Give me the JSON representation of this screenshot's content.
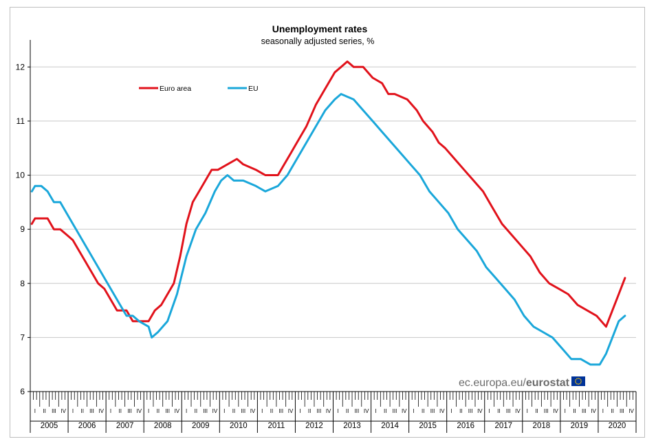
{
  "chart_data": {
    "type": "line",
    "title": "Unemployment rates",
    "subtitle": "seasonally adjusted series, %",
    "ylim": [
      6,
      12.5
    ],
    "yticks": [
      "6",
      "7",
      "8",
      "9",
      "10",
      "11",
      "12"
    ],
    "grid": true,
    "legend_position": "top-left",
    "x_years": [
      "2005",
      "2006",
      "2007",
      "2008",
      "2009",
      "2010",
      "2011",
      "2012",
      "2013",
      "2014",
      "2015",
      "2016",
      "2017",
      "2018",
      "2019",
      "2020"
    ],
    "quarter_labels": [
      "I",
      "II",
      "III",
      "IV"
    ],
    "series": [
      {
        "name": "Euro area",
        "color": "#e1121b",
        "points": [
          [
            "2005-01",
            9.1
          ],
          [
            "2005-02",
            9.2
          ],
          [
            "2005-06",
            9.2
          ],
          [
            "2005-08",
            9.0
          ],
          [
            "2005-10",
            9.0
          ],
          [
            "2005-12",
            8.9
          ],
          [
            "2006-02",
            8.8
          ],
          [
            "2006-04",
            8.6
          ],
          [
            "2006-06",
            8.4
          ],
          [
            "2006-08",
            8.2
          ],
          [
            "2006-10",
            8.0
          ],
          [
            "2006-12",
            7.9
          ],
          [
            "2007-02",
            7.7
          ],
          [
            "2007-04",
            7.5
          ],
          [
            "2007-07",
            7.5
          ],
          [
            "2007-09",
            7.3
          ],
          [
            "2007-12",
            7.3
          ],
          [
            "2008-02",
            7.3
          ],
          [
            "2008-04",
            7.5
          ],
          [
            "2008-06",
            7.6
          ],
          [
            "2008-08",
            7.8
          ],
          [
            "2008-10",
            8.0
          ],
          [
            "2008-12",
            8.5
          ],
          [
            "2009-02",
            9.1
          ],
          [
            "2009-04",
            9.5
          ],
          [
            "2009-06",
            9.7
          ],
          [
            "2009-08",
            9.9
          ],
          [
            "2009-10",
            10.1
          ],
          [
            "2009-12",
            10.1
          ],
          [
            "2010-03",
            10.2
          ],
          [
            "2010-06",
            10.3
          ],
          [
            "2010-08",
            10.2
          ],
          [
            "2010-12",
            10.1
          ],
          [
            "2011-03",
            10.0
          ],
          [
            "2011-07",
            10.0
          ],
          [
            "2011-09",
            10.2
          ],
          [
            "2011-11",
            10.4
          ],
          [
            "2012-01",
            10.6
          ],
          [
            "2012-04",
            10.9
          ],
          [
            "2012-07",
            11.3
          ],
          [
            "2012-10",
            11.6
          ],
          [
            "2013-01",
            11.9
          ],
          [
            "2013-03",
            12.0
          ],
          [
            "2013-05",
            12.1
          ],
          [
            "2013-07",
            12.0
          ],
          [
            "2013-10",
            12.0
          ],
          [
            "2014-01",
            11.8
          ],
          [
            "2014-04",
            11.7
          ],
          [
            "2014-06",
            11.5
          ],
          [
            "2014-08",
            11.5
          ],
          [
            "2014-12",
            11.4
          ],
          [
            "2015-03",
            11.2
          ],
          [
            "2015-05",
            11.0
          ],
          [
            "2015-08",
            10.8
          ],
          [
            "2015-10",
            10.6
          ],
          [
            "2015-12",
            10.5
          ],
          [
            "2016-03",
            10.3
          ],
          [
            "2016-06",
            10.1
          ],
          [
            "2016-09",
            9.9
          ],
          [
            "2016-12",
            9.7
          ],
          [
            "2017-03",
            9.4
          ],
          [
            "2017-06",
            9.1
          ],
          [
            "2017-09",
            8.9
          ],
          [
            "2017-12",
            8.7
          ],
          [
            "2018-03",
            8.5
          ],
          [
            "2018-06",
            8.2
          ],
          [
            "2018-09",
            8.0
          ],
          [
            "2018-12",
            7.9
          ],
          [
            "2019-03",
            7.8
          ],
          [
            "2019-06",
            7.6
          ],
          [
            "2019-09",
            7.5
          ],
          [
            "2019-12",
            7.4
          ],
          [
            "2020-03",
            7.2
          ],
          [
            "2020-05",
            7.5
          ],
          [
            "2020-07",
            7.8
          ],
          [
            "2020-09",
            8.1
          ]
        ]
      },
      {
        "name": "EU",
        "color": "#1aa7da",
        "points": [
          [
            "2005-01",
            9.7
          ],
          [
            "2005-02",
            9.8
          ],
          [
            "2005-04",
            9.8
          ],
          [
            "2005-06",
            9.7
          ],
          [
            "2005-08",
            9.5
          ],
          [
            "2005-10",
            9.5
          ],
          [
            "2005-12",
            9.3
          ],
          [
            "2006-02",
            9.1
          ],
          [
            "2006-05",
            8.8
          ],
          [
            "2006-08",
            8.5
          ],
          [
            "2006-11",
            8.2
          ],
          [
            "2007-02",
            7.9
          ],
          [
            "2007-05",
            7.6
          ],
          [
            "2007-07",
            7.4
          ],
          [
            "2007-09",
            7.4
          ],
          [
            "2007-11",
            7.3
          ],
          [
            "2008-02",
            7.2
          ],
          [
            "2008-03",
            7.0
          ],
          [
            "2008-05",
            7.1
          ],
          [
            "2008-08",
            7.3
          ],
          [
            "2008-11",
            7.8
          ],
          [
            "2009-02",
            8.5
          ],
          [
            "2009-05",
            9.0
          ],
          [
            "2009-08",
            9.3
          ],
          [
            "2009-11",
            9.7
          ],
          [
            "2010-01",
            9.9
          ],
          [
            "2010-03",
            10.0
          ],
          [
            "2010-05",
            9.9
          ],
          [
            "2010-08",
            9.9
          ],
          [
            "2010-12",
            9.8
          ],
          [
            "2011-03",
            9.7
          ],
          [
            "2011-07",
            9.8
          ],
          [
            "2011-10",
            10.0
          ],
          [
            "2012-01",
            10.3
          ],
          [
            "2012-04",
            10.6
          ],
          [
            "2012-07",
            10.9
          ],
          [
            "2012-10",
            11.2
          ],
          [
            "2013-01",
            11.4
          ],
          [
            "2013-03",
            11.5
          ],
          [
            "2013-07",
            11.4
          ],
          [
            "2013-10",
            11.2
          ],
          [
            "2014-01",
            11.0
          ],
          [
            "2014-04",
            10.8
          ],
          [
            "2014-07",
            10.6
          ],
          [
            "2014-10",
            10.4
          ],
          [
            "2015-01",
            10.2
          ],
          [
            "2015-04",
            10.0
          ],
          [
            "2015-07",
            9.7
          ],
          [
            "2015-10",
            9.5
          ],
          [
            "2016-01",
            9.3
          ],
          [
            "2016-04",
            9.0
          ],
          [
            "2016-07",
            8.8
          ],
          [
            "2016-10",
            8.6
          ],
          [
            "2017-01",
            8.3
          ],
          [
            "2017-04",
            8.1
          ],
          [
            "2017-07",
            7.9
          ],
          [
            "2017-10",
            7.7
          ],
          [
            "2018-01",
            7.4
          ],
          [
            "2018-04",
            7.2
          ],
          [
            "2018-07",
            7.1
          ],
          [
            "2018-10",
            7.0
          ],
          [
            "2019-01",
            6.8
          ],
          [
            "2019-04",
            6.6
          ],
          [
            "2019-07",
            6.6
          ],
          [
            "2019-10",
            6.5
          ],
          [
            "2020-01",
            6.5
          ],
          [
            "2020-03",
            6.7
          ],
          [
            "2020-05",
            7.0
          ],
          [
            "2020-07",
            7.3
          ],
          [
            "2020-09",
            7.4
          ]
        ]
      }
    ]
  },
  "source": {
    "prefix": "ec.europa.eu/",
    "brand": "eurostat"
  }
}
